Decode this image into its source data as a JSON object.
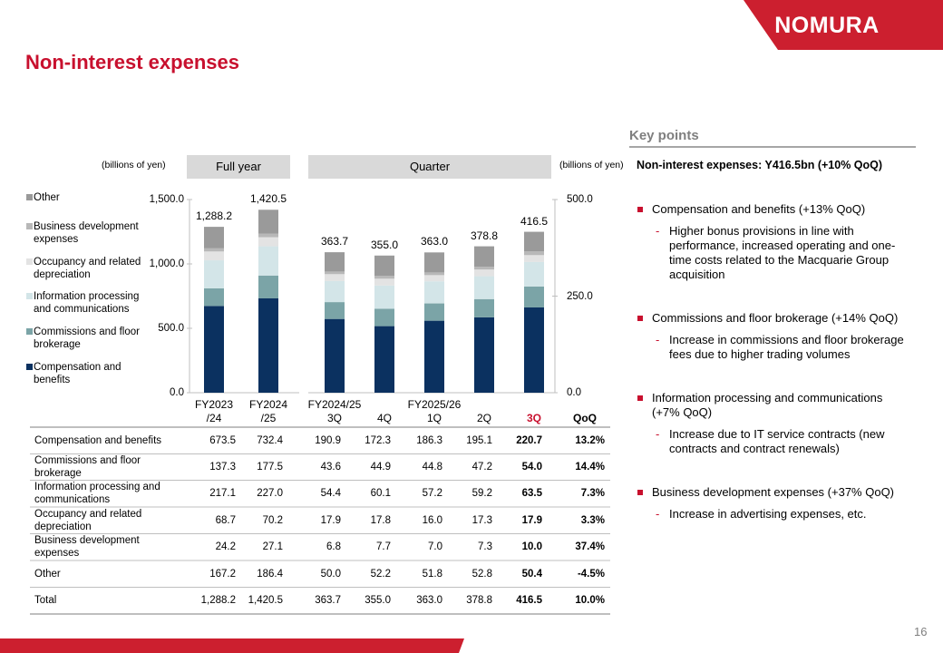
{
  "header": {
    "title": "Non-interest expenses",
    "logo": "NOMURA",
    "page_number": "16"
  },
  "chart_data": [
    {
      "type": "bar",
      "title": "Full year",
      "y_label": "(billions of yen)",
      "stacked": true,
      "legend": "left",
      "categories": [
        "FY2023\n/24",
        "FY2024\n/25"
      ],
      "series": [
        {
          "name": "Compensation and benefits",
          "color": "#0b3160",
          "values": [
            673.5,
            732.4
          ]
        },
        {
          "name": "Commissions and floor brokerage",
          "color": "#7ba4a7",
          "values": [
            137.3,
            177.5
          ]
        },
        {
          "name": "Information processing and communications",
          "color": "#d3e5e8",
          "values": [
            217.1,
            227.0
          ]
        },
        {
          "name": "Occupancy and related depreciation",
          "color": "#e3e3e3",
          "values": [
            68.7,
            70.2
          ]
        },
        {
          "name": "Business development expenses",
          "color": "#b8b8b8",
          "values": [
            24.2,
            27.1
          ]
        },
        {
          "name": "Other",
          "color": "#9a9a9a",
          "values": [
            167.2,
            186.4
          ]
        }
      ],
      "totals": [
        1288.2,
        1420.5
      ],
      "total_labels": [
        "1,288.2",
        "1,420.5"
      ],
      "ylim": [
        0,
        1500
      ],
      "yticks": [
        {
          "value": 0,
          "label": "0.0"
        },
        {
          "value": 500,
          "label": "500.0"
        },
        {
          "value": 1000,
          "label": "1,000.0"
        },
        {
          "value": 1500,
          "label": "1,500.0"
        }
      ]
    },
    {
      "type": "bar",
      "title": "Quarter",
      "y_label": "(billions of yen)",
      "stacked": true,
      "categories": [
        "FY2024/25\n3Q",
        "4Q",
        "FY2025/26\n1Q",
        "2Q",
        "3Q"
      ],
      "series": [
        {
          "axis": "y2",
          "values": [
            190.9,
            172.3,
            186.3,
            195.1,
            220.7
          ]
        },
        {
          "axis": "y2",
          "values": [
            43.6,
            44.9,
            44.8,
            47.2,
            54.0
          ]
        },
        {
          "axis": "y2",
          "values": [
            54.4,
            60.1,
            57.2,
            59.2,
            63.5
          ]
        },
        {
          "axis": "y2",
          "values": [
            17.9,
            17.8,
            16.0,
            17.3,
            17.9
          ]
        },
        {
          "axis": "y2",
          "values": [
            6.8,
            7.7,
            7.0,
            7.3,
            10.0
          ]
        },
        {
          "axis": "y2",
          "values": [
            50.0,
            52.2,
            51.8,
            52.8,
            50.4
          ]
        }
      ],
      "totals": [
        363.7,
        355.0,
        363.0,
        378.8,
        416.5
      ],
      "total_labels": [
        "363.7",
        "355.0",
        "363.0",
        "378.8",
        "416.5"
      ],
      "y2lim": [
        0,
        500
      ],
      "y2ticks": [
        {
          "value": 0,
          "label": "0.0"
        },
        {
          "value": 250,
          "label": "250.0"
        },
        {
          "value": 500,
          "label": "500.0"
        }
      ]
    }
  ],
  "table": {
    "header": "QoQ",
    "rows": [
      [
        "Compensation and benefits",
        "673.5",
        "732.4",
        "190.9",
        "172.3",
        "186.3",
        "195.1",
        "220.7",
        "13.2%"
      ],
      [
        "Commissions and floor brokerage",
        "137.3",
        "177.5",
        "43.6",
        "44.9",
        "44.8",
        "47.2",
        "54.0",
        "14.4%"
      ],
      [
        "Information processing and communications",
        "217.1",
        "227.0",
        "54.4",
        "60.1",
        "57.2",
        "59.2",
        "63.5",
        "7.3%"
      ],
      [
        "Occupancy and related depreciation",
        "68.7",
        "70.2",
        "17.9",
        "17.8",
        "16.0",
        "17.3",
        "17.9",
        "3.3%"
      ],
      [
        "Business development expenses",
        "24.2",
        "27.1",
        "6.8",
        "7.7",
        "7.0",
        "7.3",
        "10.0",
        "37.4%"
      ],
      [
        "Other",
        "167.2",
        "186.4",
        "50.0",
        "52.2",
        "51.8",
        "52.8",
        "50.4",
        "-4.5%"
      ],
      [
        "Total",
        "1,288.2",
        "1,420.5",
        "363.7",
        "355.0",
        "363.0",
        "378.8",
        "416.5",
        "10.0%"
      ]
    ]
  },
  "key_points": {
    "title": "Key points",
    "summary": "Non-interest expenses: Y416.5bn (+10% QoQ)",
    "items": [
      {
        "text": "Compensation and benefits (+13% QoQ)",
        "subs": [
          "Higher bonus provisions in line with performance, increased operating and one-time costs related to the Macquarie Group acquisition"
        ]
      },
      {
        "text": "Commissions and floor brokerage (+14% QoQ)",
        "subs": [
          "Increase in commissions and floor brokerage fees due to higher trading volumes"
        ]
      },
      {
        "text": "Information processing and communications (+7% QoQ)",
        "subs": [
          "Increase due to IT service contracts (new contracts and contract renewals)"
        ]
      },
      {
        "text": "Business development expenses (+37% QoQ)",
        "subs": [
          "Increase in advertising expenses, etc."
        ]
      }
    ]
  }
}
